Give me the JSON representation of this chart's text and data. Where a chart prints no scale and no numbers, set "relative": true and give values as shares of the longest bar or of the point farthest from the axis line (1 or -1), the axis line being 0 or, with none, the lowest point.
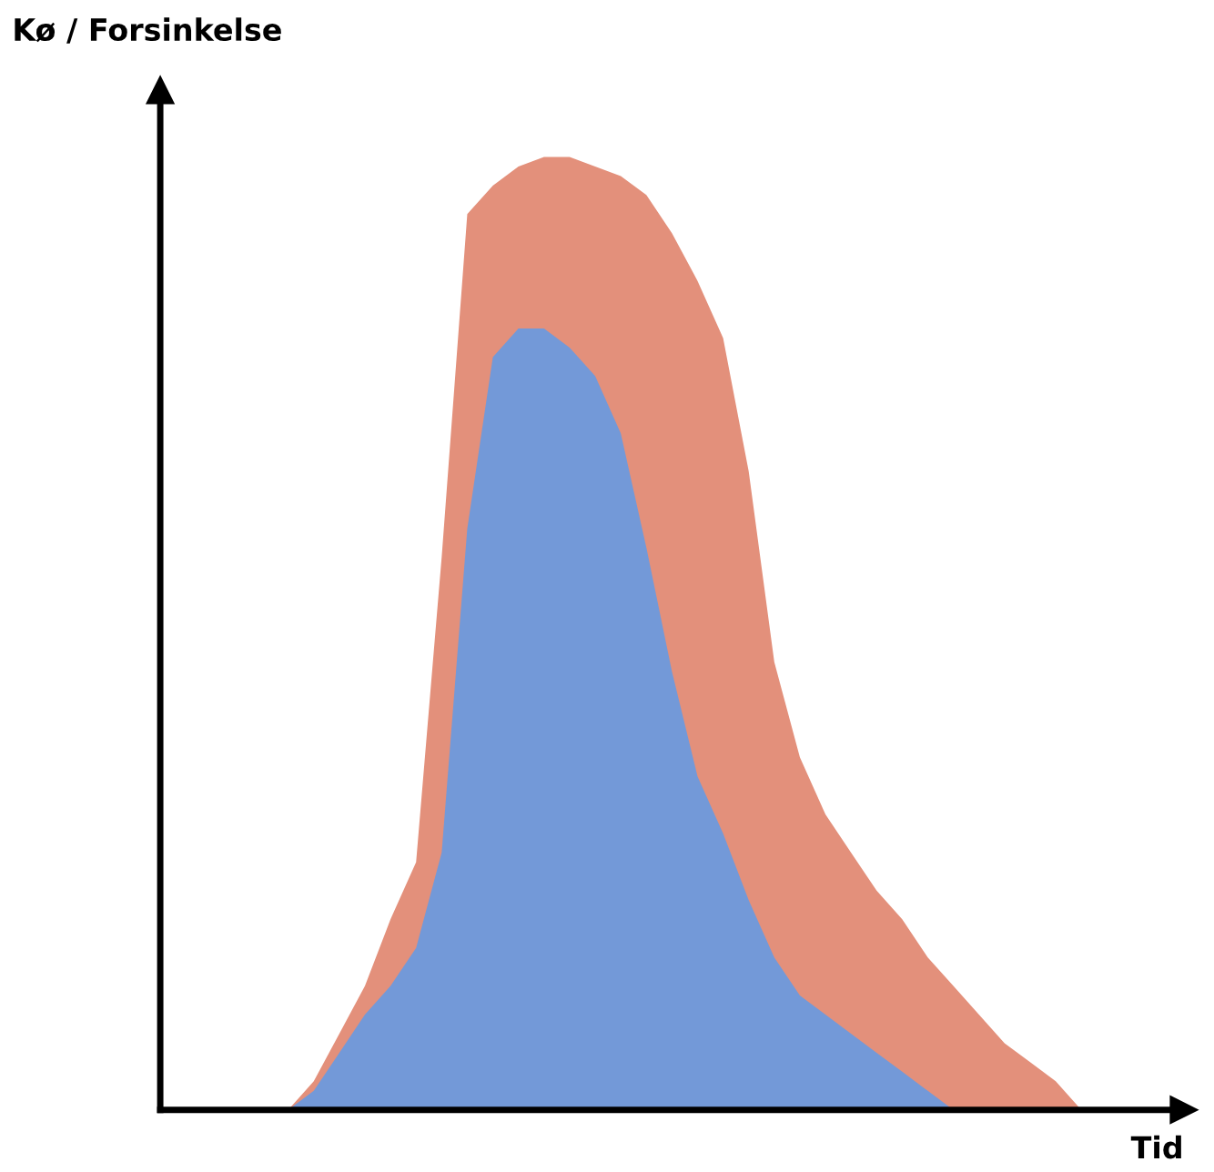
{
  "chart_data": {
    "type": "area",
    "relative": true,
    "xlabel": "Tid",
    "ylabel": "Kø / Forsinkelse",
    "tick_labels": false,
    "legend": false,
    "categories": [
      null,
      null,
      null,
      null,
      null,
      null,
      null,
      null,
      null,
      null,
      null,
      null,
      null,
      null,
      null,
      null,
      null,
      null,
      null,
      null,
      null,
      null,
      null,
      null,
      null,
      null,
      null,
      null,
      null,
      null,
      null,
      null,
      null,
      null,
      null,
      null,
      null,
      null,
      null,
      null,
      null
    ],
    "series": [
      {
        "color": "#e3907b",
        "values": [
          0,
          0,
          0,
          0,
          0,
          0,
          0.03,
          0.08,
          0.13,
          0.2,
          0.26,
          0.58,
          0.94,
          0.97,
          0.99,
          1.0,
          1.0,
          0.99,
          0.98,
          0.96,
          0.92,
          0.87,
          0.81,
          0.67,
          0.47,
          0.37,
          0.31,
          0.27,
          0.23,
          0.2,
          0.16,
          0.13,
          0.1,
          0.07,
          0.05,
          0.03,
          0,
          0,
          0,
          0,
          0
        ]
      },
      {
        "color": "#7399d8",
        "values": [
          0,
          0,
          0,
          0,
          0,
          0,
          0.02,
          0.06,
          0.1,
          0.13,
          0.17,
          0.27,
          0.61,
          0.79,
          0.82,
          0.82,
          0.8,
          0.77,
          0.71,
          0.59,
          0.46,
          0.35,
          0.29,
          0.22,
          0.16,
          0.12,
          0.1,
          0.08,
          0.06,
          0.04,
          0.02,
          0,
          0,
          0,
          0,
          0,
          0,
          0,
          0,
          0,
          0
        ]
      }
    ]
  }
}
